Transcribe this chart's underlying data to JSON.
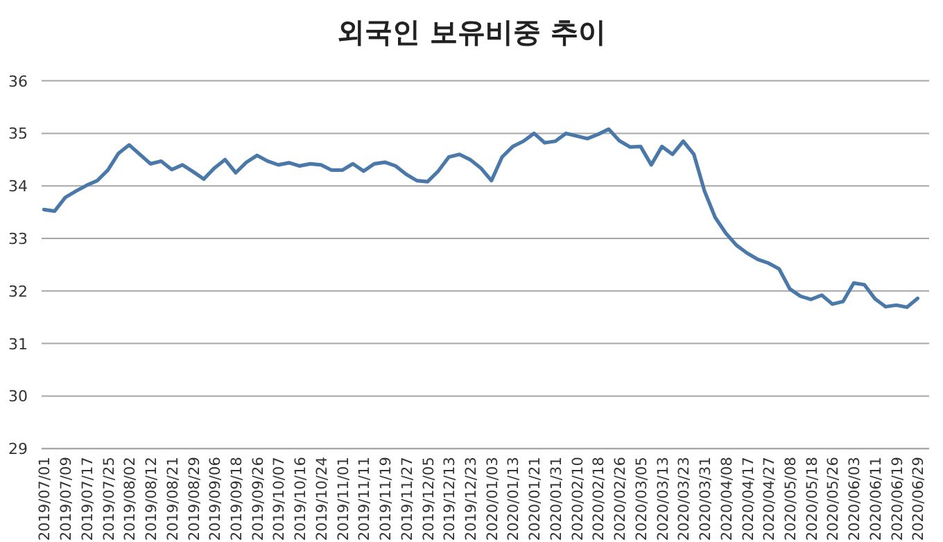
{
  "chart_data": {
    "type": "line",
    "title": "외국인 보유비중 추이",
    "categories": [
      "2019/07/01",
      null,
      "2019/07/09",
      null,
      "2019/07/17",
      null,
      "2019/07/25",
      null,
      "2019/08/02",
      null,
      "2019/08/12",
      null,
      "2019/08/21",
      null,
      "2019/08/29",
      null,
      "2019/09/06",
      null,
      "2019/09/18",
      null,
      "2019/09/26",
      null,
      "2019/10/07",
      null,
      "2019/10/16",
      null,
      "2019/10/24",
      null,
      "2019/11/01",
      null,
      "2019/11/11",
      null,
      "2019/11/19",
      null,
      "2019/11/27",
      null,
      "2019/12/05",
      null,
      "2019/12/13",
      null,
      "2019/12/23",
      null,
      "2020/01/03",
      null,
      "2020/01/13",
      null,
      "2020/01/21",
      null,
      "2020/01/31",
      null,
      "2020/02/10",
      null,
      "2020/02/18",
      null,
      "2020/02/26",
      null,
      "2020/03/05",
      null,
      "2020/03/13",
      null,
      "2020/03/23",
      null,
      "2020/03/31",
      null,
      "2020/04/08",
      null,
      "2020/04/17",
      null,
      "2020/04/27",
      null,
      "2020/05/08",
      null,
      "2020/05/18",
      null,
      "2020/05/26",
      null,
      "2020/06/03",
      null,
      "2020/06/11",
      null,
      "2020/06/19",
      null,
      "2020/06/29"
    ],
    "series": [
      {
        "color": "#4a78a8",
        "values": [
          33.55,
          33.52,
          33.78,
          33.9,
          34.01,
          34.1,
          34.3,
          34.62,
          34.78,
          34.6,
          34.42,
          34.47,
          34.31,
          34.4,
          34.27,
          34.13,
          34.34,
          34.5,
          34.25,
          34.45,
          34.58,
          34.47,
          34.4,
          34.44,
          34.38,
          34.42,
          34.4,
          34.3,
          34.3,
          34.42,
          34.28,
          34.42,
          34.45,
          34.38,
          34.22,
          34.1,
          34.08,
          34.28,
          34.55,
          34.6,
          34.5,
          34.34,
          34.1,
          34.55,
          34.75,
          34.85,
          35.0,
          34.82,
          34.85,
          35.0,
          34.95,
          34.9,
          34.98,
          35.08,
          34.86,
          34.74,
          34.75,
          34.4,
          34.75,
          34.6,
          34.85,
          34.6,
          33.9,
          33.4,
          33.1,
          32.87,
          32.72,
          32.6,
          32.53,
          32.42,
          32.04,
          31.9,
          31.84,
          31.92,
          31.75,
          31.8,
          32.15,
          32.12,
          31.85,
          31.7,
          31.73,
          31.69,
          31.86
        ]
      }
    ],
    "ylim": [
      29,
      36
    ],
    "yticks": [
      29,
      30,
      31,
      32,
      33,
      34,
      35,
      36
    ],
    "grid": "y",
    "marker": "none",
    "line_style": "solid"
  }
}
